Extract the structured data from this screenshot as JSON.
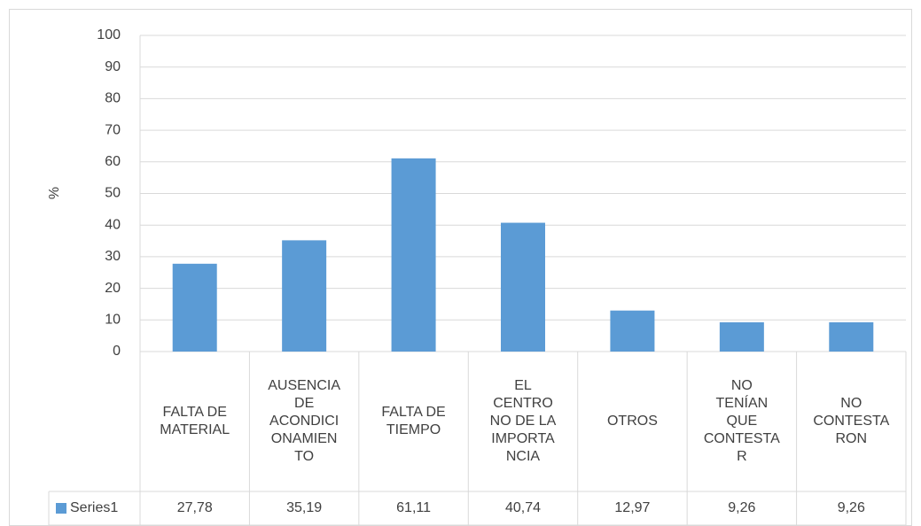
{
  "chart_data": {
    "type": "bar",
    "y_label": "%",
    "categories": [
      "FALTA DE\nMATERIAL",
      "AUSENCIA\nDE\nACONDICI\nONAMIEN\nTO",
      "FALTA DE\nTIEMPO",
      "EL\nCENTRO\nNO DE LA\nIMPORTA\nNCIA",
      "OTROS",
      "NO\nTENÍAN\nQUE\nCONTESTA\nR",
      "NO\nCONTESTA\nRON"
    ],
    "series": [
      {
        "name": "Series1",
        "color": "#5b9bd5",
        "values": [
          27.78,
          35.19,
          61.11,
          40.74,
          12.97,
          9.26,
          9.26
        ],
        "value_labels": [
          "27,78",
          "35,19",
          "61,11",
          "40,74",
          "12,97",
          "9,26",
          "9,26"
        ]
      }
    ],
    "ylim": [
      0,
      100
    ],
    "yticks": [
      0,
      10,
      20,
      30,
      40,
      50,
      60,
      70,
      80,
      90,
      100
    ],
    "grid": true
  }
}
